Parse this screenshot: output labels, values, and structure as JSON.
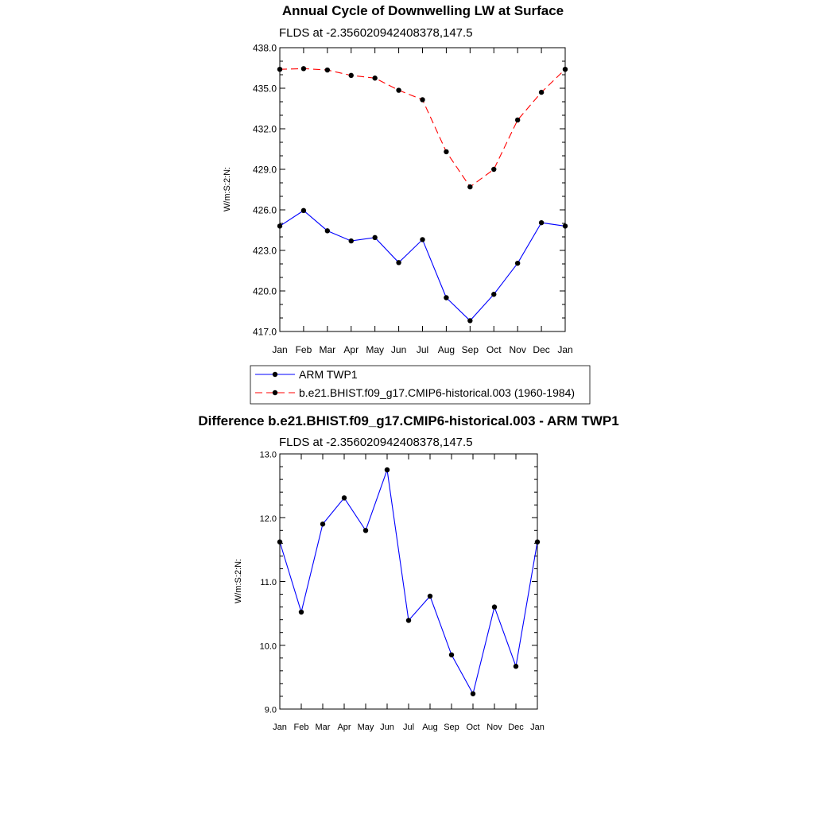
{
  "chart_data": [
    {
      "type": "line",
      "title": "Annual Cycle of Downwelling LW at Surface",
      "subtitle": "FLDS at -2.356020942408378,147.5",
      "ylabel": "W/m:S:2:N:",
      "xlabel": "",
      "categories": [
        "Jan",
        "Feb",
        "Mar",
        "Apr",
        "May",
        "Jun",
        "Jul",
        "Aug",
        "Sep",
        "Oct",
        "Nov",
        "Dec",
        "Jan"
      ],
      "ylim": [
        417.0,
        438.0
      ],
      "yticks": [
        "417.0",
        "420.0",
        "423.0",
        "426.0",
        "429.0",
        "432.0",
        "435.0",
        "438.0"
      ],
      "grid": false,
      "legend_position": "bottom",
      "series": [
        {
          "name": "ARM TWP1",
          "color": "#0000ff",
          "dashed": false,
          "values": [
            424.8,
            425.95,
            424.45,
            423.7,
            423.95,
            422.1,
            423.8,
            419.5,
            417.8,
            419.75,
            422.05,
            425.05,
            424.8
          ]
        },
        {
          "name": "b.e21.BHIST.f09_g17.CMIP6-historical.003 (1960-1984)",
          "color": "#ff0000",
          "dashed": true,
          "values": [
            436.4,
            436.45,
            436.35,
            435.95,
            435.75,
            434.85,
            434.15,
            430.3,
            427.7,
            429.0,
            432.65,
            434.7,
            436.4
          ]
        }
      ]
    },
    {
      "type": "line",
      "title": "Difference b.e21.BHIST.f09_g17.CMIP6-historical.003 - ARM TWP1",
      "subtitle": "FLDS at -2.356020942408378,147.5",
      "ylabel": "W/m:S:2:N:",
      "xlabel": "",
      "categories": [
        "Jan",
        "Feb",
        "Mar",
        "Apr",
        "May",
        "Jun",
        "Jul",
        "Aug",
        "Sep",
        "Oct",
        "Nov",
        "Dec",
        "Jan"
      ],
      "ylim": [
        9.0,
        13.0
      ],
      "yticks": [
        "9.0",
        "10.0",
        "11.0",
        "12.0",
        "13.0"
      ],
      "grid": false,
      "series": [
        {
          "color": "#0000ff",
          "dashed": false,
          "values": [
            11.62,
            10.52,
            11.9,
            12.31,
            11.8,
            12.75,
            10.39,
            10.77,
            9.85,
            9.24,
            10.6,
            9.67,
            11.62
          ]
        }
      ]
    }
  ]
}
